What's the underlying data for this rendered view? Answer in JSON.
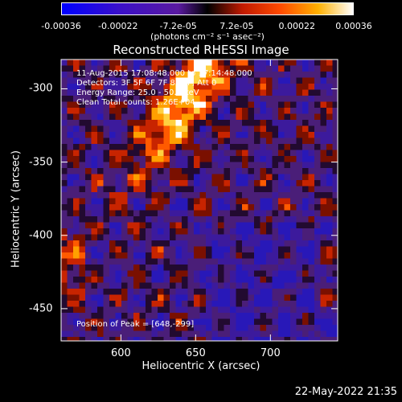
{
  "colorbar": {
    "ticks": [
      "-0.00036",
      "-0.00022",
      "-7.2e-05",
      "7.2e-05",
      "0.00022",
      "0.00036"
    ],
    "tick_values": [
      -0.00036,
      -0.00022,
      -7.2e-05,
      7.2e-05,
      0.00022,
      0.00036
    ],
    "unit_label": "(photons cm⁻² s⁻¹ asec⁻²)",
    "range": [
      -0.00036,
      0.00036
    ]
  },
  "chart_data": {
    "type": "heatmap",
    "title": "Reconstructed RHESSI Image",
    "xlabel": "Heliocentric X (arcsec)",
    "ylabel": "Heliocentric Y (arcsec)",
    "x_ticks": [
      "600",
      "650",
      "700"
    ],
    "x_tick_values": [
      600,
      650,
      700
    ],
    "y_ticks": [
      "-300",
      "-350",
      "-400",
      "-450"
    ],
    "y_tick_values": [
      -300,
      -350,
      -400,
      -450
    ],
    "xlim": [
      560,
      745
    ],
    "ylim": [
      -472,
      -280
    ],
    "peak": [
      648,
      -299
    ],
    "annotations": {
      "time": "11-Aug-2015 17:08:48.000 to 17:14:48.000",
      "detectors": "Detectors: 3F 5F 6F 7F 8F 9F, Att 0",
      "energy": "Energy Range: 25.0 - 50.0 keV",
      "clean": "Clean    Total counts: 1.26E+04",
      "peak_label": "Position of Peak = [648,-299]"
    }
  },
  "footer": {
    "timestamp": "22-May-2022 21:35"
  }
}
